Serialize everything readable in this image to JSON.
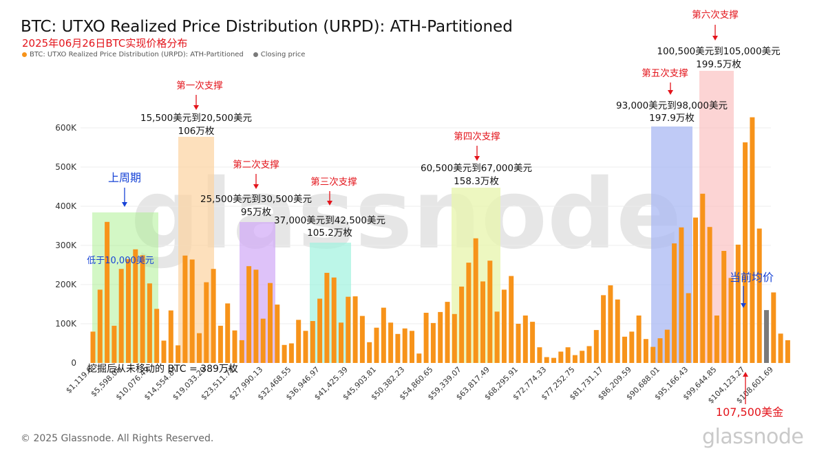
{
  "header": {
    "title": "BTC: UTXO Realized Price Distribution (URPD): ATH-Partitioned",
    "subtitle": "2025年06月26日BTC实现价格分布"
  },
  "legend": [
    {
      "label": "BTC: UTXO Realized Price Distribution (URPD): ATH-Partitioned",
      "color": "#f7931a"
    },
    {
      "label": "Closing price",
      "color": "#7a7a7a"
    }
  ],
  "footer": {
    "copyright": "© 2025 Glassnode. All Rights Reserved.",
    "logo": "glassnode"
  },
  "watermark": "glassnode",
  "colors": {
    "bar": "#f7931a",
    "closing": "#7a7a7a",
    "annotation_red": "#e3141b",
    "annotation_blue": "#1743d6"
  },
  "annotations": {
    "prev_cycle": {
      "label": "上周期",
      "sub": "低于10,000美元"
    },
    "support1": {
      "label": "第一次支撑",
      "range": "15,500美元到20,500美元",
      "amount": "106万枚"
    },
    "support2": {
      "label": "第二次支撑",
      "range": "25,500美元到30,500美元",
      "amount": "95万枚"
    },
    "support3": {
      "label": "第三次支撑",
      "range": "37,000美元到42,500美元",
      "amount": "105.2万枚"
    },
    "support4": {
      "label": "第四次支撑",
      "range": "60,500美元到67,000美元",
      "amount": "158.3万枚"
    },
    "support5": {
      "label": "第五次支撑",
      "range": "93,000美元到98,000美元",
      "amount": "197.9万枚"
    },
    "support6": {
      "label": "第六次支撑",
      "range": "100,500美元到105,000美元",
      "amount": "199.5万枚"
    },
    "current": {
      "label": "当前均价",
      "price": "107,500美金"
    },
    "unmoved": {
      "label": "挖掘后从未移动的 BTC = 389万枚"
    }
  },
  "chart_data": {
    "type": "bar",
    "ylim": [
      0,
      600000
    ],
    "y_ticks": [
      0,
      100000,
      200000,
      300000,
      400000,
      500000,
      600000
    ],
    "y_tick_labels": [
      "0",
      "100K",
      "200K",
      "300K",
      "400K",
      "500K",
      "600K"
    ],
    "x_tick_labels": [
      "$1,119.6",
      "$5,598.05",
      "$10,076.49",
      "$14,554.87",
      "$19,033.29",
      "$23,511.71",
      "$27,990.13",
      "$32,468.55",
      "$36,946.97",
      "$41,425.39",
      "$45,903.81",
      "$50,382.23",
      "$54,860.65",
      "$59,339.07",
      "$63,817.49",
      "$68,295.91",
      "$72,774.33",
      "$77,252.75",
      "$81,731.17",
      "$86,209.59",
      "$90,688.01",
      "$95,166.43",
      "$99,644.85",
      "$104,123.27",
      "$108,601.69"
    ],
    "values": [
      80000,
      187000,
      360000,
      95000,
      240000,
      265000,
      290000,
      275000,
      203000,
      138000,
      57000,
      134000,
      45000,
      274000,
      264000,
      76000,
      206000,
      240000,
      95000,
      152000,
      83000,
      58000,
      247000,
      238000,
      113000,
      204000,
      149000,
      46000,
      50000,
      110000,
      82000,
      107000,
      164000,
      230000,
      218000,
      103000,
      169000,
      170000,
      120000,
      53000,
      90000,
      141000,
      103000,
      74000,
      88000,
      82000,
      24000,
      128000,
      102000,
      130000,
      156000,
      125000,
      195000,
      256000,
      318000,
      208000,
      261000,
      131000,
      187000,
      222000,
      100000,
      121000,
      105000,
      40000,
      15000,
      13000,
      29000,
      40000,
      20000,
      31000,
      43000,
      84000,
      173000,
      198000,
      162000,
      67000,
      80000,
      121000,
      61000,
      41000,
      63000,
      85000,
      305000,
      346000,
      178000,
      371000,
      432000,
      347000,
      121000,
      286000,
      217000,
      302000,
      563000,
      627000,
      343000,
      135000,
      180000,
      75000,
      58000
    ],
    "closing_price_index": 95
  }
}
